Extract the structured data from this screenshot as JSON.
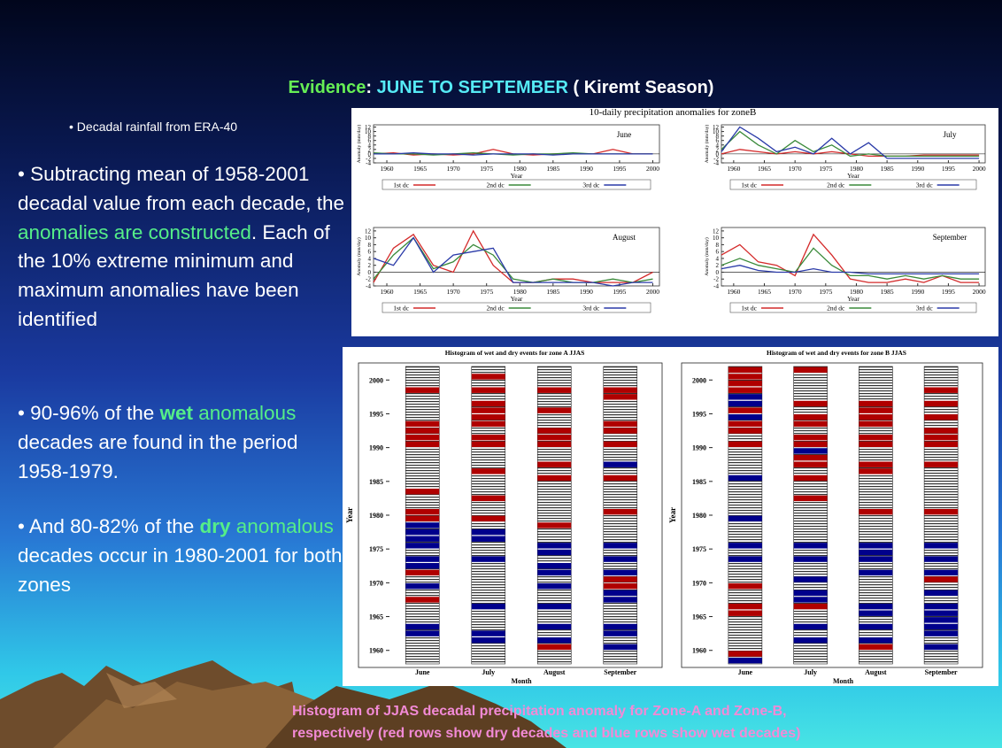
{
  "title": {
    "lead": "Evidence",
    "colon": ":",
    "months": "JUNE TO SEPTEMBER",
    "season": "( Kiremt  Season)"
  },
  "bullets": [
    [
      {
        "text": "• Decadal rainfall from ERA-40",
        "style": "small"
      }
    ],
    [
      {
        "text": "• Subtracting mean of 1958-2001 decadal value from each decade, the ",
        "style": "normal"
      },
      {
        "text": "anomalies are constructed",
        "style": "green"
      },
      {
        "text": ". Each of the 10% extreme minimum and maximum anomalies have been identified",
        "style": "normal"
      }
    ],
    [
      {
        "text": "• 90-96% of the ",
        "style": "normal"
      },
      {
        "text": "wet",
        "style": "greenbold"
      },
      {
        "text": " anomalous",
        "style": "green"
      },
      {
        "text": " decades are found in the period 1958-1979.",
        "style": "normal"
      }
    ],
    [
      {
        "text": "• And 80-82% of the ",
        "style": "normal"
      },
      {
        "text": "dry",
        "style": "greenbold"
      },
      {
        "text": " anomalous",
        "style": "green"
      },
      {
        "text": " decades occur in 1980-2001 for both zones",
        "style": "normal"
      }
    ]
  ],
  "line_figure": {
    "title": "10-daily precipitation anomalies for zoneB",
    "xlabel": "Year",
    "ylabel": "Anomaly (mm/day)",
    "xlim": [
      1958,
      2001
    ],
    "ylim": [
      -4,
      13
    ],
    "xticks": [
      1960,
      1965,
      1970,
      1975,
      1980,
      1985,
      1990,
      1995,
      2000
    ],
    "yticks": [
      -4,
      -2,
      0,
      2,
      4,
      6,
      8,
      10,
      12
    ],
    "series_names": [
      "1st dc",
      "2nd dc",
      "3rd dc"
    ],
    "colors": [
      "#d42a2a",
      "#3a8a3a",
      "#2a3aa8"
    ],
    "x": [
      1958,
      1961,
      1964,
      1967,
      1970,
      1973,
      1976,
      1979,
      1982,
      1985,
      1988,
      1991,
      1994,
      1997,
      2000
    ],
    "panels": [
      {
        "label": "June",
        "series": [
          [
            0,
            0.5,
            -0.5,
            0,
            -0.5,
            0,
            2,
            0,
            -0.5,
            0,
            0,
            0,
            2,
            0,
            0
          ],
          [
            0.5,
            0,
            0,
            -0.5,
            0,
            0.5,
            0,
            -0.5,
            0,
            0,
            0.5,
            0,
            0,
            0,
            0
          ],
          [
            0,
            0,
            0.5,
            0,
            0,
            -0.5,
            0,
            0,
            0,
            -0.5,
            0,
            0,
            0,
            0,
            0
          ]
        ]
      },
      {
        "label": "July",
        "series": [
          [
            0,
            2,
            1,
            0,
            1,
            0,
            1,
            0,
            -1,
            -1,
            -1,
            -0.5,
            -0.5,
            -0.5,
            -0.5
          ],
          [
            2,
            10,
            4,
            0,
            6,
            1,
            4,
            -1,
            0,
            -1,
            -1,
            -1,
            -1,
            -1,
            -1
          ],
          [
            1,
            12,
            7,
            1,
            3,
            0,
            7,
            0,
            5,
            -2,
            -2,
            -2,
            -2,
            -2,
            -2
          ]
        ]
      },
      {
        "label": "August",
        "series": [
          [
            -3,
            7,
            11,
            2,
            0,
            12,
            2,
            -3,
            -3,
            -2,
            -2,
            -3,
            -3,
            -3,
            0
          ],
          [
            -2,
            5,
            10,
            1,
            3,
            8,
            5,
            -2,
            -3,
            -2,
            -3,
            -3,
            -2,
            -3,
            -2
          ],
          [
            4,
            2,
            10,
            0,
            5,
            6,
            7,
            -3,
            -3,
            -3,
            -3,
            -3,
            -4,
            -3,
            -3
          ]
        ]
      },
      {
        "label": "September",
        "series": [
          [
            5,
            8,
            3,
            2,
            -1,
            11,
            5,
            -2,
            -3,
            -3,
            -2,
            -3,
            -1,
            -3,
            -3
          ],
          [
            2,
            4,
            2,
            1,
            0,
            7,
            2,
            -1,
            -1,
            -2,
            -1,
            -2,
            -1,
            -2,
            -2
          ],
          [
            1,
            2,
            0.5,
            0,
            0,
            1,
            0,
            0,
            -0.5,
            -0.5,
            -0.5,
            -0.5,
            -0.5,
            -0.5,
            -0.5
          ]
        ]
      }
    ]
  },
  "hist_figure": {
    "ylabel": "Year",
    "xlabel": "Month",
    "months": [
      "June",
      "July",
      "August",
      "September"
    ],
    "ylim": [
      1958,
      2002
    ],
    "yticks": [
      1960,
      1965,
      1970,
      1975,
      1980,
      1985,
      1990,
      1995,
      2000
    ],
    "dry_color": "#b00000",
    "wet_color": "#00008c",
    "panels": [
      {
        "title": "Histogram of wet and dry events for zone A JJAS",
        "dry": [
          [
            1967,
            1971,
            1979,
            1980,
            1983,
            1990,
            1991,
            1992,
            1993,
            1998
          ],
          [
            1979,
            1982,
            1986,
            1990,
            1991,
            1993,
            1994,
            1995,
            1996,
            1998,
            2000
          ],
          [
            1960,
            1978,
            1985,
            1987,
            1990,
            1991,
            1992,
            1995,
            1998
          ],
          [
            1969,
            1970,
            1980,
            1985,
            1990,
            1992,
            1993,
            1997,
            1998
          ]
        ],
        "wet": [
          [
            1962,
            1963,
            1969,
            1972,
            1973,
            1975,
            1976,
            1977,
            1978
          ],
          [
            1961,
            1962,
            1966,
            1973,
            1976,
            1977
          ],
          [
            1961,
            1963,
            1966,
            1969,
            1971,
            1972,
            1974,
            1975
          ],
          [
            1960,
            1962,
            1963,
            1967,
            1968,
            1971,
            1973,
            1975,
            1987
          ]
        ]
      },
      {
        "title": "Histogram of wet and dry events for zone B JJAS",
        "dry": [
          [
            1959,
            1965,
            1966,
            1969,
            1990,
            1992,
            1993,
            1995,
            1998,
            1999,
            2000,
            2001
          ],
          [
            1966,
            1982,
            1985,
            1987,
            1988,
            1990,
            1991,
            1993,
            1994,
            1996,
            2001
          ],
          [
            1960,
            1980,
            1986,
            1987,
            1990,
            1991,
            1993,
            1994,
            1995,
            1996
          ],
          [
            1970,
            1980,
            1987,
            1990,
            1991,
            1992,
            1994,
            1996,
            1998
          ]
        ],
        "wet": [
          [
            1958,
            1973,
            1975,
            1979,
            1985,
            1994,
            1996,
            1997
          ],
          [
            1961,
            1963,
            1967,
            1968,
            1970,
            1973,
            1975,
            1989
          ],
          [
            1961,
            1963,
            1965,
            1966,
            1971,
            1973,
            1974,
            1975
          ],
          [
            1960,
            1962,
            1963,
            1964,
            1965,
            1966,
            1968,
            1971,
            1973,
            1975
          ]
        ]
      }
    ]
  },
  "caption": [
    "Histogram of JJAS decadal precipitation anomaly for Zone-A and Zone-B,",
    "respectively (red rows show dry decades and blue rows show wet decades)"
  ]
}
